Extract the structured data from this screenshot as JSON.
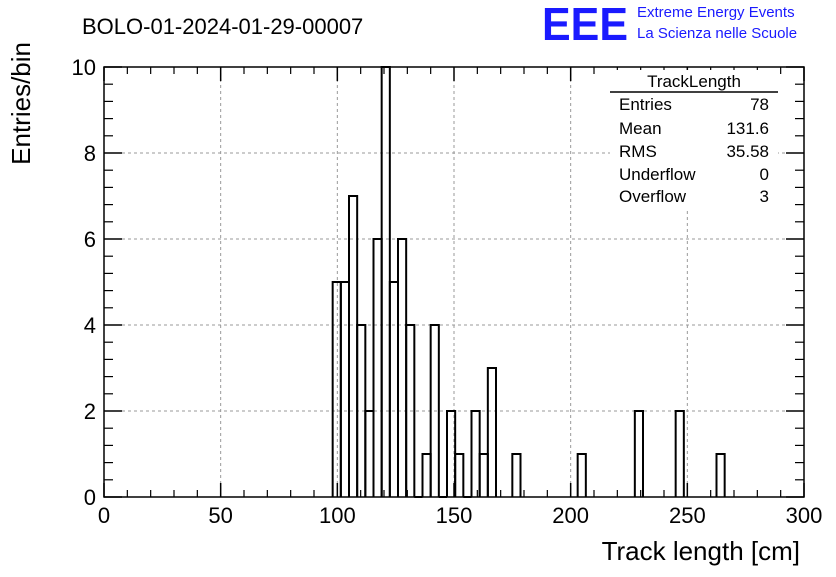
{
  "chart_data": {
    "type": "bar",
    "histogram": true,
    "title": "BOLO-01-2024-01-29-00007",
    "xlabel": "Track length [cm]",
    "ylabel": "Entries/bin",
    "xlim": [
      0,
      300
    ],
    "ylim": [
      0,
      10
    ],
    "grid": true,
    "bin_width": 3.5,
    "x_ticks": [
      "0",
      "50",
      "100",
      "150",
      "200",
      "250",
      "300"
    ],
    "y_ticks": [
      "0",
      "2",
      "4",
      "6",
      "8",
      "10"
    ],
    "bins": [
      {
        "x": 98,
        "value": 5
      },
      {
        "x": 101.5,
        "value": 5
      },
      {
        "x": 105,
        "value": 7
      },
      {
        "x": 108.5,
        "value": 4
      },
      {
        "x": 112,
        "value": 2
      },
      {
        "x": 115.5,
        "value": 6
      },
      {
        "x": 119,
        "value": 10
      },
      {
        "x": 122.5,
        "value": 5
      },
      {
        "x": 126,
        "value": 6
      },
      {
        "x": 129.5,
        "value": 4
      },
      {
        "x": 133,
        "value": 0
      },
      {
        "x": 136.5,
        "value": 1
      },
      {
        "x": 140,
        "value": 4
      },
      {
        "x": 143.5,
        "value": 0
      },
      {
        "x": 147,
        "value": 2
      },
      {
        "x": 150.5,
        "value": 1
      },
      {
        "x": 154,
        "value": 0
      },
      {
        "x": 157.5,
        "value": 2
      },
      {
        "x": 161,
        "value": 1
      },
      {
        "x": 164.5,
        "value": 3
      },
      {
        "x": 175,
        "value": 1
      },
      {
        "x": 203,
        "value": 1
      },
      {
        "x": 227.5,
        "value": 2
      },
      {
        "x": 245,
        "value": 2
      },
      {
        "x": 262.5,
        "value": 1
      }
    ]
  },
  "stats_box": {
    "title": "TrackLength",
    "rows": [
      {
        "label": "Entries",
        "value": "78"
      },
      {
        "label": "Mean",
        "value": "131.6"
      },
      {
        "label": "RMS",
        "value": "35.58"
      },
      {
        "label": "Underflow",
        "value": "0"
      },
      {
        "label": "Overflow",
        "value": "3"
      }
    ]
  },
  "logo": {
    "text": "EEE",
    "line1": "Extreme Energy Events",
    "line2": "La Scienza nelle Scuole",
    "color": "#1a1aff"
  },
  "colors": {
    "line": "#000000",
    "grid": "#999999"
  }
}
